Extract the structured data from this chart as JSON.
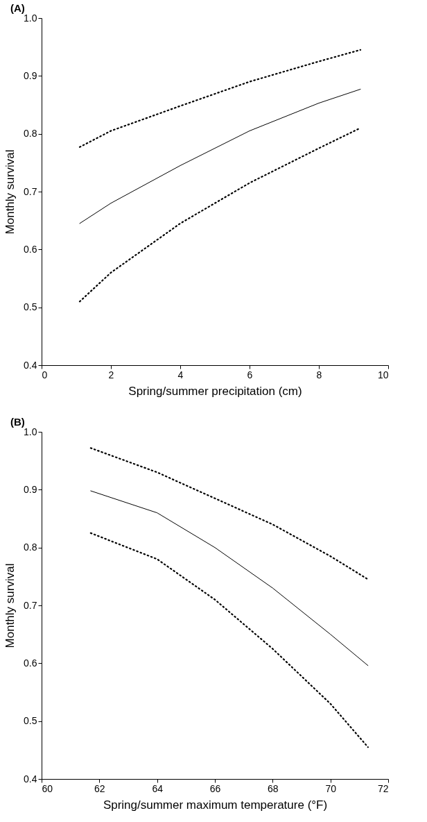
{
  "chart_data": [
    {
      "type": "line",
      "title": "(A)",
      "xlabel": "Spring/summer precipitation (cm)",
      "ylabel": "Monthly survival",
      "xlim": [
        0,
        10
      ],
      "xticks": [
        0,
        2,
        4,
        6,
        8,
        10
      ],
      "ylim": [
        0.4,
        1.0
      ],
      "yticks": [
        0.4,
        0.5,
        0.6,
        0.7,
        0.8,
        0.9,
        {
          "value": 1.0,
          "label": "1.0"
        }
      ],
      "grid": false,
      "marker": "none",
      "series": [
        {
          "color": "#000000",
          "line_style": "solid",
          "x": [
            1.1,
            2,
            4,
            6,
            8,
            9.2
          ],
          "values": [
            0.645,
            0.68,
            0.745,
            0.805,
            0.853,
            0.877
          ]
        },
        {
          "color": "#000000",
          "line_style": "dotted",
          "x": [
            1.1,
            2,
            4,
            6,
            8,
            9.2
          ],
          "values": [
            0.777,
            0.805,
            0.848,
            0.89,
            0.925,
            0.945
          ]
        },
        {
          "color": "#000000",
          "line_style": "dotted",
          "x": [
            1.1,
            2,
            4,
            6,
            8,
            9.2
          ],
          "values": [
            0.51,
            0.56,
            0.645,
            0.715,
            0.775,
            0.81
          ]
        }
      ]
    },
    {
      "type": "line",
      "title": "(B)",
      "xlabel": "Spring/summer maximum temperature (°F)",
      "ylabel": "Monthly survival",
      "xlim": [
        60,
        72
      ],
      "xticks": [
        60,
        62,
        64,
        66,
        68,
        70,
        72
      ],
      "ylim": [
        0.4,
        1.0
      ],
      "yticks": [
        0.4,
        0.5,
        0.6,
        0.7,
        0.8,
        0.9,
        {
          "value": 1.0,
          "label": "1.0"
        }
      ],
      "grid": false,
      "marker": "none",
      "series": [
        {
          "color": "#000000",
          "line_style": "solid",
          "x": [
            61.7,
            64,
            66,
            68,
            70,
            71.3
          ],
          "values": [
            0.898,
            0.86,
            0.8,
            0.73,
            0.65,
            0.596
          ]
        },
        {
          "color": "#000000",
          "line_style": "dotted",
          "x": [
            61.7,
            64,
            66,
            68,
            70,
            71.3
          ],
          "values": [
            0.972,
            0.93,
            0.885,
            0.84,
            0.785,
            0.745
          ]
        },
        {
          "color": "#000000",
          "line_style": "dotted",
          "x": [
            61.7,
            64,
            66,
            68,
            70,
            71.3
          ],
          "values": [
            0.825,
            0.78,
            0.71,
            0.625,
            0.53,
            0.455
          ]
        }
      ]
    }
  ]
}
